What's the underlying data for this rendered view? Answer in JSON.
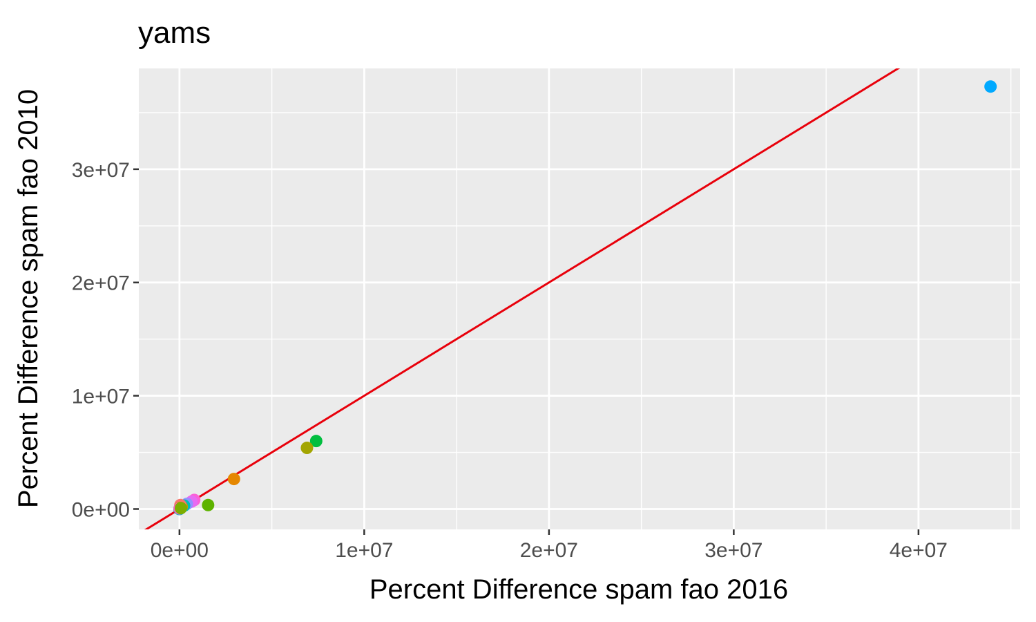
{
  "chart_data": {
    "type": "scatter",
    "title": "yams",
    "xlabel": "Percent Difference spam fao 2016",
    "ylabel": "Percent Difference spam fao 2010",
    "xlim": [
      -2200000,
      45500000
    ],
    "ylim": [
      -1800000,
      38900000
    ],
    "x_ticks": [
      {
        "value": 0,
        "label": "0e+00"
      },
      {
        "value": 10000000,
        "label": "1e+07"
      },
      {
        "value": 20000000,
        "label": "2e+07"
      },
      {
        "value": 30000000,
        "label": "3e+07"
      },
      {
        "value": 40000000,
        "label": "4e+07"
      }
    ],
    "y_ticks": [
      {
        "value": 0,
        "label": "0e+00"
      },
      {
        "value": 10000000,
        "label": "1e+07"
      },
      {
        "value": 20000000,
        "label": "2e+07"
      },
      {
        "value": 30000000,
        "label": "3e+07"
      }
    ],
    "x_minor_ticks": [
      5000000,
      15000000,
      25000000,
      35000000,
      45000000
    ],
    "y_minor_ticks": [
      5000000,
      15000000,
      25000000,
      35000000
    ],
    "grid": true,
    "legend": "none",
    "reference_line": {
      "type": "identity",
      "slope": 1,
      "intercept": 0,
      "color": "#e8000b"
    },
    "points": [
      {
        "x": 43900000,
        "y": 37300000,
        "color": "#00a9ff"
      },
      {
        "x": 7400000,
        "y": 6000000,
        "color": "#00be3f"
      },
      {
        "x": 6900000,
        "y": 5400000,
        "color": "#a3a500"
      },
      {
        "x": 2950000,
        "y": 2650000,
        "color": "#e58700"
      },
      {
        "x": 1550000,
        "y": 350000,
        "color": "#5eb300"
      },
      {
        "x": 800000,
        "y": 800000,
        "color": "#fb61d7"
      },
      {
        "x": 650000,
        "y": 650000,
        "color": "#e76bf3"
      },
      {
        "x": 400000,
        "y": 450000,
        "color": "#9590ff"
      },
      {
        "x": 250000,
        "y": 300000,
        "color": "#00c0b8"
      },
      {
        "x": 120000,
        "y": 200000,
        "color": "#c49a00"
      },
      {
        "x": 50000,
        "y": 350000,
        "color": "#f8766d"
      },
      {
        "x": 30000,
        "y": 100000,
        "color": "#d89000"
      },
      {
        "x": 0,
        "y": 0,
        "color": "#00bfc4"
      },
      {
        "x": 10000,
        "y": 50000,
        "color": "#ff62bc"
      },
      {
        "x": 80000,
        "y": 80000,
        "color": "#7cae00"
      }
    ],
    "colors": {
      "panel_background": "#ebebeb",
      "grid_major": "#ffffff",
      "grid_minor": "#f5f5f5",
      "tick_label": "#4d4d4d",
      "tick_mark": "#333333"
    }
  }
}
